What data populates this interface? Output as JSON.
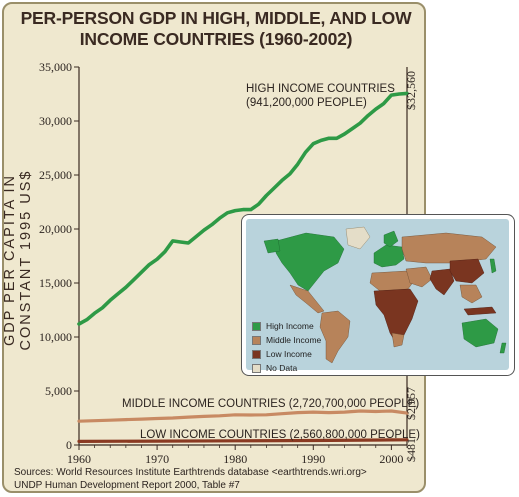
{
  "title": {
    "line1": "PER-PERSON GDP IN HIGH, MIDDLE, AND LOW",
    "line2": "INCOME COUNTRIES (1960-2002)"
  },
  "source": {
    "line1": "Sources: World Resources Institute Earthtrends database <earthtrends.wri.org>",
    "line2": "UNDP Human Development Report 2000, Table #7"
  },
  "chart_data": {
    "type": "line",
    "title": "PER-PERSON GDP IN HIGH, MIDDLE, AND LOW INCOME COUNTRIES (1960-2002)",
    "ylabel": "GDP PER CAPITA IN CONSTANT 1995 US$",
    "xlim": [
      1960,
      2002
    ],
    "ylim": [
      0,
      35000
    ],
    "xticks": [
      1960,
      1970,
      1980,
      1990,
      2000
    ],
    "xtick_labels": [
      "1960",
      "1970",
      "1980",
      "1990",
      "2000"
    ],
    "yticks": [
      0,
      5000,
      10000,
      15000,
      20000,
      25000,
      30000,
      35000
    ],
    "ytick_labels": [
      "0",
      "5,000",
      "10,000",
      "15,000",
      "20,000",
      "25,000",
      "30,000",
      "35,000"
    ],
    "grid": false,
    "series": [
      {
        "name": "HIGH INCOME COUNTRIES",
        "label_line1": "HIGH INCOME COUNTRIES",
        "label_line2": "(941,200,000 PEOPLE)",
        "end_label": "$32,560",
        "color": "#2e9a46",
        "x": [
          1960,
          1961,
          1962,
          1963,
          1964,
          1965,
          1966,
          1967,
          1968,
          1969,
          1970,
          1971,
          1972,
          1973,
          1974,
          1975,
          1976,
          1977,
          1978,
          1979,
          1980,
          1981,
          1982,
          1983,
          1984,
          1985,
          1986,
          1987,
          1988,
          1989,
          1990,
          1991,
          1992,
          1993,
          1994,
          1995,
          1996,
          1997,
          1998,
          1999,
          2000,
          2001,
          2002
        ],
        "values": [
          11200,
          11600,
          12200,
          12700,
          13400,
          14000,
          14600,
          15300,
          16000,
          16700,
          17200,
          17900,
          18900,
          18800,
          18700,
          19300,
          19900,
          20400,
          21000,
          21500,
          21700,
          21800,
          21800,
          22300,
          23100,
          23800,
          24500,
          25100,
          26000,
          27100,
          27900,
          28200,
          28400,
          28400,
          28800,
          29300,
          29800,
          30500,
          31100,
          31600,
          32400,
          32500,
          32560
        ]
      },
      {
        "name": "MIDDLE INCOME COUNTRIES",
        "label": "MIDDLE INCOME COUNTRIES (2,720,700,000 PEOPLE)",
        "end_label": "$2,957",
        "color": "#c88a63",
        "x": [
          1960,
          1962,
          1964,
          1966,
          1968,
          1970,
          1972,
          1974,
          1976,
          1978,
          1980,
          1982,
          1984,
          1986,
          1988,
          1990,
          1992,
          1994,
          1996,
          1998,
          2000,
          2002
        ],
        "values": [
          2200,
          2250,
          2300,
          2350,
          2400,
          2450,
          2500,
          2580,
          2650,
          2700,
          2800,
          2780,
          2800,
          2900,
          3000,
          3050,
          3000,
          3050,
          3150,
          3100,
          3150,
          2957
        ]
      },
      {
        "name": "LOW INCOME COUNTRIES",
        "label": "LOW INCOME COUNTRIES (2,560,800,000 PEOPLE)",
        "end_label": "$481",
        "color": "#8a3a22",
        "x": [
          1960,
          1970,
          1980,
          1990,
          2000,
          2002
        ],
        "values": [
          330,
          360,
          390,
          420,
          470,
          481
        ]
      }
    ]
  },
  "inset_map": {
    "legend": [
      {
        "label": "High Income",
        "color": "#2e9a46"
      },
      {
        "label": "Middle Income",
        "color": "#b7835a"
      },
      {
        "label": "Low Income",
        "color": "#7a3520"
      },
      {
        "label": "No Data",
        "color": "#e4ddc8"
      }
    ],
    "colors": {
      "high": "#2e9a46",
      "middle": "#b7835a",
      "low": "#7a3520",
      "nodata": "#e4ddc8",
      "ocean": "#b9d3dc"
    }
  }
}
